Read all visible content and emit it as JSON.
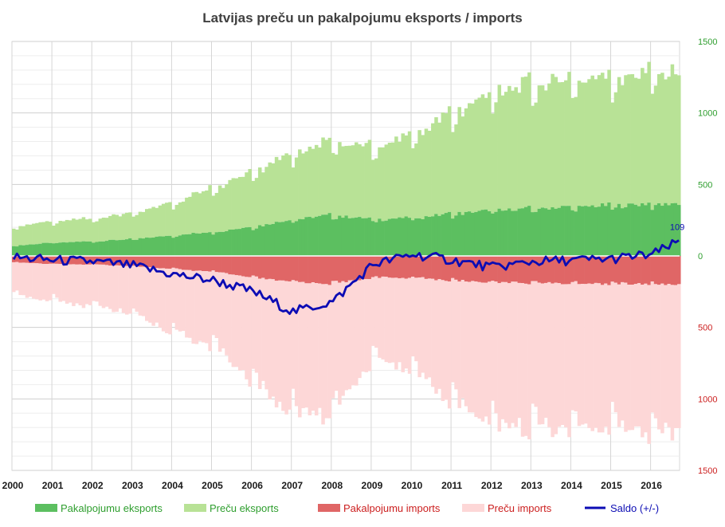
{
  "chart_data": {
    "type": "area",
    "title": "Latvijas preču un pakalpojumu  eksports / imports",
    "x_categories": [
      "2000",
      "2001",
      "2002",
      "2003",
      "2004",
      "2005",
      "2006",
      "2007",
      "2008",
      "2009",
      "2010",
      "2011",
      "2012",
      "2013",
      "2014",
      "2015",
      "2016"
    ],
    "y_ticks_positive": [
      "1500",
      "1000",
      "500",
      "0"
    ],
    "y_ticks_negative": [
      "500",
      "1000",
      "1500"
    ],
    "ylim": [
      -1500,
      1500
    ],
    "last_value_label": "109",
    "legend": [
      {
        "key": "services_export",
        "label": "Pakalpojumu eksports",
        "color": "#5cbf60"
      },
      {
        "key": "goods_export",
        "label": "Preču eksports",
        "color": "#b8e296"
      },
      {
        "key": "services_import",
        "label": "Pakalpojumu imports",
        "color": "#e06666"
      },
      {
        "key": "goods_import",
        "label": "Preču imports",
        "color": "#fdd7d7"
      },
      {
        "key": "saldo",
        "label": "Saldo (+/-)",
        "color": "#0c0cb4"
      }
    ],
    "colors": {
      "pos_axis": "#2e9e2e",
      "neg_axis": "#cc2020",
      "saldo_label": "#0c0cb4",
      "grid": "#d9d9d9"
    },
    "yearly_series": {
      "years": [
        2000,
        2001,
        2002,
        2003,
        2004,
        2005,
        2006,
        2007,
        2008,
        2009,
        2010,
        2011,
        2012,
        2013,
        2014,
        2015,
        2016,
        2016.75
      ],
      "services_export": [
        70,
        90,
        100,
        115,
        140,
        165,
        200,
        250,
        280,
        250,
        260,
        290,
        310,
        325,
        335,
        345,
        355,
        360
      ],
      "goods_export": [
        130,
        145,
        155,
        175,
        220,
        300,
        370,
        450,
        500,
        480,
        560,
        680,
        790,
        840,
        860,
        870,
        880,
        900
      ],
      "services_import": [
        -45,
        -55,
        -60,
        -70,
        -90,
        -110,
        -150,
        -180,
        -190,
        -150,
        -150,
        -170,
        -180,
        -185,
        -190,
        -190,
        -195,
        -200
      ],
      "goods_import": [
        -220,
        -250,
        -280,
        -320,
        -430,
        -500,
        -700,
        -890,
        -880,
        -540,
        -620,
        -820,
        -950,
        -970,
        -980,
        -980,
        -990,
        -1000
      ],
      "saldo": [
        -10,
        -30,
        -40,
        -70,
        -130,
        -170,
        -250,
        -390,
        -320,
        -60,
        10,
        -30,
        -80,
        -40,
        -30,
        -20,
        10,
        109
      ]
    }
  }
}
